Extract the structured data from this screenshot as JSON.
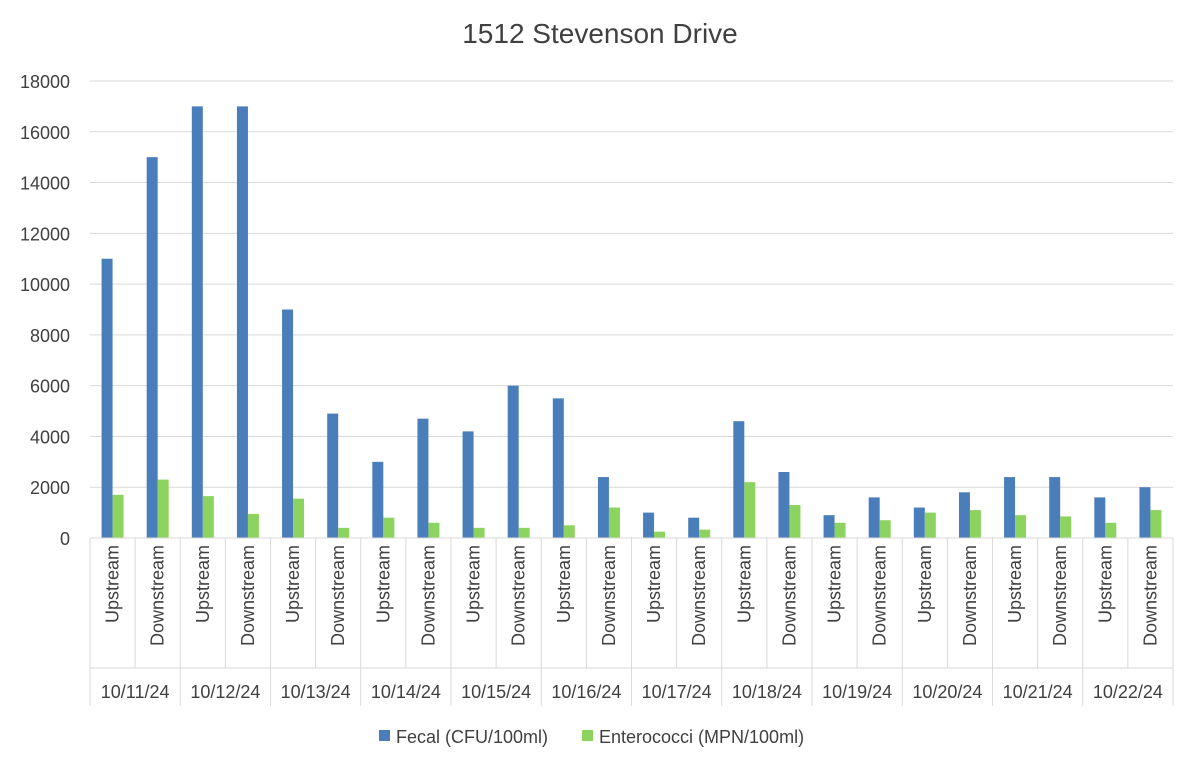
{
  "chart_data": {
    "type": "bar",
    "title": "1512 Stevenson Drive",
    "xlabel": "",
    "ylabel": "",
    "ylim": [
      0,
      18000
    ],
    "yticks": [
      0,
      2000,
      4000,
      6000,
      8000,
      10000,
      12000,
      14000,
      16000,
      18000
    ],
    "grid": true,
    "legend_position": "bottom",
    "groups": [
      "10/11/24",
      "10/12/24",
      "10/13/24",
      "10/14/24",
      "10/15/24",
      "10/16/24",
      "10/17/24",
      "10/18/24",
      "10/19/24",
      "10/20/24",
      "10/21/24",
      "10/22/24"
    ],
    "subcategories": [
      "Upstream",
      "Downstream"
    ],
    "series": [
      {
        "name": "Fecal (CFU/100ml)",
        "color": "#4A7EBB",
        "values": [
          11000,
          15000,
          17000,
          17000,
          9000,
          4900,
          3000,
          4700,
          4200,
          6000,
          5500,
          2400,
          1000,
          800,
          4600,
          2600,
          900,
          1600,
          1200,
          1800,
          2400,
          2400,
          1600,
          2000
        ]
      },
      {
        "name": "Enterococci (MPN/100ml)",
        "color": "#8DD35F",
        "values": [
          1700,
          2300,
          1650,
          950,
          1550,
          400,
          800,
          600,
          400,
          400,
          500,
          1200,
          250,
          330,
          2200,
          1300,
          600,
          700,
          1000,
          1100,
          900,
          850,
          600,
          1100
        ]
      }
    ]
  }
}
